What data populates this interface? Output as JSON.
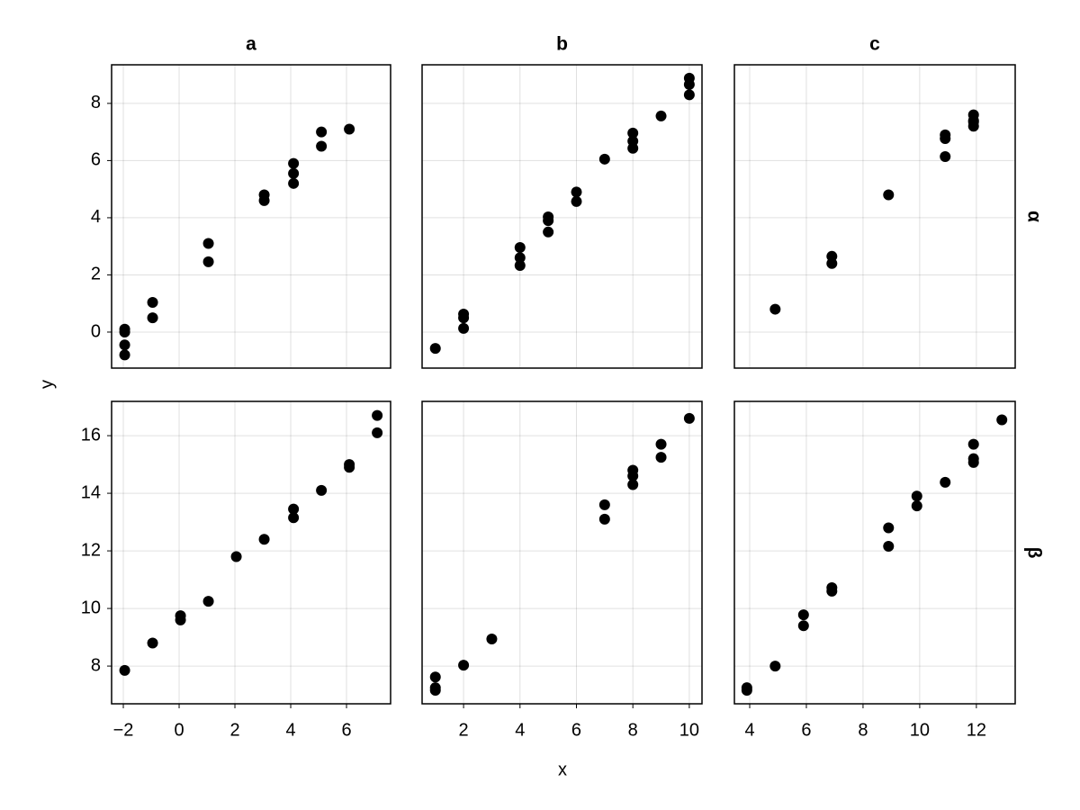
{
  "facets": {
    "xlabel": "x",
    "ylabel": "y",
    "color": "#000000",
    "grid": true,
    "columns": [
      {
        "label": "a",
        "xlim": [
          -2.42,
          7.58
        ],
        "xticks": [
          {
            "value": -2,
            "label": "−2"
          },
          0,
          2,
          4,
          6
        ]
      },
      {
        "label": "b",
        "xlim": [
          0.53,
          10.45
        ],
        "xticks": [
          2,
          4,
          6,
          8,
          10
        ]
      },
      {
        "label": "c",
        "xlim": [
          3.46,
          13.37
        ],
        "xticks": [
          4,
          6,
          8,
          10,
          12
        ]
      }
    ],
    "rows": [
      {
        "label": "α",
        "ylim": [
          -1.26,
          9.35
        ],
        "yticks": [
          0,
          2,
          4,
          6,
          8
        ]
      },
      {
        "label": "β",
        "ylim": [
          6.69,
          17.19
        ],
        "yticks": [
          8,
          10,
          12,
          14,
          16
        ]
      }
    ]
  },
  "chart_data": [
    {
      "type": "scatter",
      "x": [
        -1.95,
        -1.95,
        -1.95,
        -1.95,
        -0.95,
        -0.95,
        1.05,
        1.05,
        3.05,
        3.05,
        4.1,
        4.1,
        4.1,
        5.1,
        5.1,
        6.1
      ],
      "y": [
        0.1,
        0.0,
        -0.45,
        -0.8,
        1.04,
        0.5,
        3.1,
        2.46,
        4.8,
        4.6,
        5.9,
        5.55,
        5.2,
        7.0,
        6.5,
        7.1
      ]
    },
    {
      "type": "scatter",
      "x": [
        1.0,
        2,
        2,
        2,
        4,
        4,
        4,
        5,
        5,
        5,
        6,
        6,
        7,
        8,
        8,
        8,
        9,
        10,
        10,
        10
      ],
      "y": [
        -0.57,
        0.63,
        0.5,
        0.13,
        2.96,
        2.6,
        2.33,
        4.03,
        3.9,
        3.5,
        4.9,
        4.57,
        6.05,
        6.96,
        6.68,
        6.43,
        7.56,
        8.88,
        8.66,
        8.3
      ]
    },
    {
      "type": "scatter",
      "x": [
        4.9,
        6.9,
        6.9,
        8.9,
        10.9,
        10.9,
        10.9,
        11.9,
        11.9,
        11.9,
        11.9
      ],
      "y": [
        0.8,
        2.65,
        2.4,
        4.8,
        6.9,
        6.77,
        6.14,
        7.6,
        7.4,
        7.2,
        7.35
      ]
    },
    {
      "type": "scatter",
      "x": [
        -1.95,
        -0.95,
        0.05,
        0.05,
        1.05,
        2.05,
        3.05,
        4.1,
        4.1,
        5.1,
        6.1,
        6.1,
        7.1,
        7.1
      ],
      "y": [
        7.85,
        8.8,
        9.75,
        9.6,
        10.25,
        11.8,
        12.4,
        13.45,
        13.15,
        14.1,
        15.0,
        14.9,
        16.7,
        16.1
      ]
    },
    {
      "type": "scatter",
      "x": [
        1,
        1,
        1,
        2,
        3,
        7,
        7,
        8,
        8,
        8,
        9,
        9,
        10
      ],
      "y": [
        7.62,
        7.25,
        7.16,
        8.03,
        8.94,
        13.6,
        13.1,
        14.8,
        14.6,
        14.3,
        15.7,
        15.25,
        16.6
      ]
    },
    {
      "type": "scatter",
      "x": [
        3.9,
        3.9,
        4.9,
        5.9,
        5.9,
        6.9,
        6.9,
        8.9,
        8.9,
        9.9,
        9.9,
        10.9,
        11.9,
        11.9,
        11.9,
        12.9
      ],
      "y": [
        7.25,
        7.16,
        8.0,
        9.78,
        9.4,
        10.72,
        10.6,
        12.8,
        12.16,
        13.9,
        13.56,
        14.38,
        15.7,
        15.2,
        15.07,
        16.55
      ]
    }
  ]
}
